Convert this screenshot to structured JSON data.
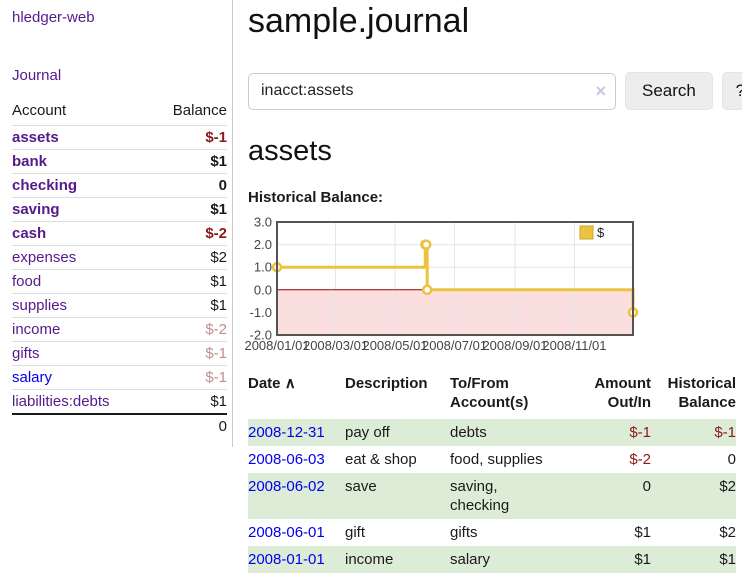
{
  "colors": {
    "link_purple": "#551a8b",
    "link_blue": "#0000ee",
    "negative_strong": "#8b1a1a",
    "negative_soft": "#bf8f8f",
    "row_stripe_green": "#dcecd7",
    "series_yellow": "#edc240",
    "chart_negative_fill": "#fbdfdf",
    "chart_zero_line": "#990000"
  },
  "sidebar": {
    "brand": "hledger-web",
    "journal_link": "Journal",
    "accounts": {
      "header_account": "Account",
      "header_balance": "Balance",
      "rows": [
        {
          "name": "assets",
          "balance": "$-1",
          "level": 1,
          "bold": true,
          "balance_style": "neg-strong",
          "link_style": "purple"
        },
        {
          "name": "bank",
          "balance": "$1",
          "level": 2,
          "bold": true,
          "balance_style": "",
          "link_style": "purple"
        },
        {
          "name": "checking",
          "balance": "0",
          "level": 3,
          "bold": true,
          "balance_style": "",
          "link_style": "purple"
        },
        {
          "name": "saving",
          "balance": "$1",
          "level": 3,
          "bold": true,
          "balance_style": "",
          "link_style": "purple"
        },
        {
          "name": "cash",
          "balance": "$-2",
          "level": 2,
          "bold": true,
          "balance_style": "neg-strong",
          "link_style": "purple"
        },
        {
          "name": "expenses",
          "balance": "$2",
          "level": 1,
          "bold": false,
          "balance_style": "",
          "link_style": "purple"
        },
        {
          "name": "food",
          "balance": "$1",
          "level": 2,
          "bold": false,
          "balance_style": "",
          "link_style": "purple"
        },
        {
          "name": "supplies",
          "balance": "$1",
          "level": 2,
          "bold": false,
          "balance_style": "",
          "link_style": "purple"
        },
        {
          "name": "income",
          "balance": "$-2",
          "level": 1,
          "bold": false,
          "balance_style": "neg-soft",
          "link_style": "purple"
        },
        {
          "name": "gifts",
          "balance": "$-1",
          "level": 2,
          "bold": false,
          "balance_style": "neg-soft",
          "link_style": "purple"
        },
        {
          "name": "salary",
          "balance": "$-1",
          "level": 2,
          "bold": false,
          "balance_style": "neg-soft",
          "link_style": "blue"
        },
        {
          "name": "liabilities:debts",
          "balance": "$1",
          "level": 1,
          "bold": false,
          "balance_style": "",
          "link_style": "purple"
        }
      ],
      "total": "0"
    }
  },
  "main": {
    "title": "sample.journal",
    "search": {
      "value": "inacct:assets",
      "clear_icon": "×",
      "search_button": "Search",
      "help_button": "?"
    },
    "account_heading": "assets",
    "chart_title": "Historical Balance:"
  },
  "chart_data": {
    "type": "line",
    "step": true,
    "title": "Historical Balance",
    "series": [
      {
        "name": "$",
        "color": "#edc240",
        "points": [
          [
            "2008-01-01",
            1
          ],
          [
            "2008-06-01",
            2
          ],
          [
            "2008-06-02",
            2
          ],
          [
            "2008-06-03",
            0
          ],
          [
            "2008-12-31",
            -1
          ]
        ]
      }
    ],
    "x_ticks": [
      {
        "label": "2008/01/01",
        "date": "2008-01-01"
      },
      {
        "label": "2008/03/01",
        "date": "2008-03-01"
      },
      {
        "label": "2008/05/01",
        "date": "2008-05-01"
      },
      {
        "label": "2008/07/01",
        "date": "2008-07-01"
      },
      {
        "label": "2008/09/01",
        "date": "2008-09-01"
      },
      {
        "label": "2008/11/01",
        "date": "2008-11-01"
      }
    ],
    "y_ticks": [
      {
        "label": "3.0",
        "value": 3
      },
      {
        "label": "2.0",
        "value": 2
      },
      {
        "label": "1.0",
        "value": 1
      },
      {
        "label": "0.0",
        "value": 0
      },
      {
        "label": "-1.0",
        "value": -1
      },
      {
        "label": "-2.0",
        "value": -2
      }
    ],
    "ylim": [
      -2,
      3
    ],
    "x_range_days": 365,
    "grid": true,
    "legend_position": "top-right",
    "negative_region_shaded": true
  },
  "register": {
    "headers": {
      "date": "Date",
      "sort_arrow": "∧",
      "description": "Description",
      "accounts": "To/From Account(s)",
      "amount": "Amount Out/In",
      "balance": "Historical Balance"
    },
    "rows": [
      {
        "date": "2008-12-31",
        "description": "pay off",
        "accounts": "debts",
        "amount": "$-1",
        "amount_neg": true,
        "balance": "$-1",
        "balance_neg": true,
        "striped": true
      },
      {
        "date": "2008-06-03",
        "description": "eat & shop",
        "accounts": "food, supplies",
        "amount": "$-2",
        "amount_neg": true,
        "balance": "0",
        "balance_neg": false,
        "striped": false
      },
      {
        "date": "2008-06-02",
        "description": "save",
        "accounts": "saving, checking",
        "amount": "0",
        "amount_neg": false,
        "balance": "$2",
        "balance_neg": false,
        "striped": true
      },
      {
        "date": "2008-06-01",
        "description": "gift",
        "accounts": "gifts",
        "amount": "$1",
        "amount_neg": false,
        "balance": "$2",
        "balance_neg": false,
        "striped": false
      },
      {
        "date": "2008-01-01",
        "description": "income",
        "accounts": "salary",
        "amount": "$1",
        "amount_neg": false,
        "balance": "$1",
        "balance_neg": false,
        "striped": true
      }
    ]
  }
}
